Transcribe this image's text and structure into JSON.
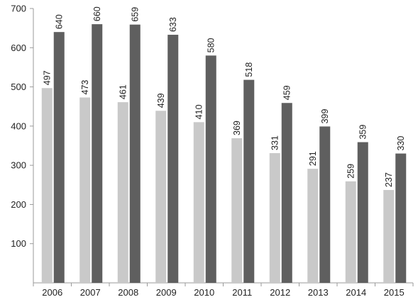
{
  "chart_data": {
    "type": "bar",
    "categories": [
      "2006",
      "2007",
      "2008",
      "2009",
      "2010",
      "2011",
      "2012",
      "2013",
      "2014",
      "2015"
    ],
    "series": [
      {
        "values": [
          497,
          473,
          461,
          439,
          410,
          369,
          331,
          291,
          259,
          237
        ],
        "color": "#c9c9c9"
      },
      {
        "values": [
          640,
          660,
          659,
          633,
          580,
          518,
          459,
          399,
          359,
          330
        ],
        "color": "#5f5f5f"
      }
    ],
    "y_ticks": [
      100,
      200,
      300,
      400,
      500,
      600,
      700
    ],
    "ylim": [
      0,
      700
    ],
    "grid": false,
    "legend": "none",
    "data_labels": true,
    "data_label_orientation": "vertical"
  }
}
